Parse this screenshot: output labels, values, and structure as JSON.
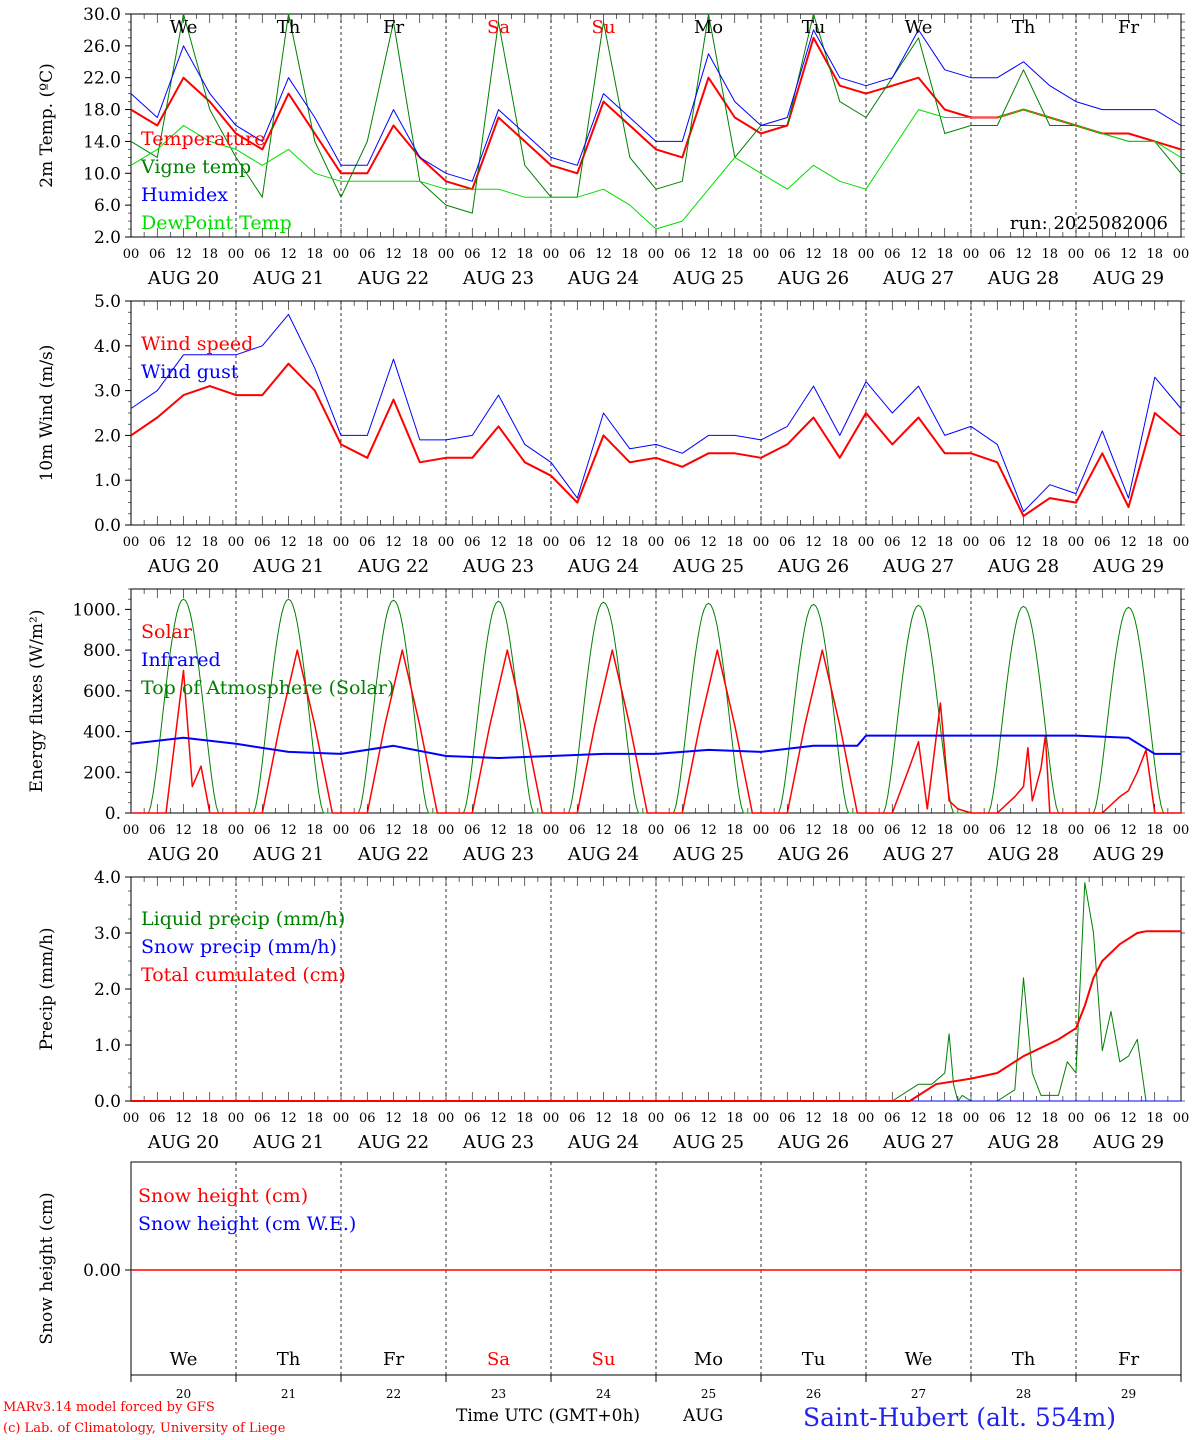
{
  "colors": {
    "red": "#ff0000",
    "green": "#008000",
    "blue": "#0000ff",
    "lightgreen": "#00dd00",
    "weekend": "#ff0000",
    "weekday": "#000000",
    "station": "#2222ee"
  },
  "day_names": [
    "We",
    "Th",
    "Fr",
    "Sa",
    "Su",
    "Mo",
    "Tu",
    "We",
    "Th",
    "Fr"
  ],
  "day_weekend": [
    false,
    false,
    false,
    true,
    true,
    false,
    false,
    false,
    false,
    false
  ],
  "date_labels": [
    "AUG 20",
    "AUG 21",
    "AUG 22",
    "AUG 23",
    "AUG 24",
    "AUG 25",
    "AUG 26",
    "AUG 27",
    "AUG 28",
    "AUG 29"
  ],
  "bottom_day_numbers": [
    "20",
    "21",
    "22",
    "23",
    "24",
    "25",
    "26",
    "27",
    "28",
    "29"
  ],
  "hour_ticks": [
    "00",
    "06",
    "12",
    "18"
  ],
  "footer": {
    "credit_line1": "MARv3.14 model forced by GFS",
    "credit_line2": "(c) Lab. of Climatology, University of Liege",
    "x_axis_label": "Time UTC (GMT+0h)",
    "month": "AUG",
    "station": "Saint-Hubert (alt. 554m)"
  },
  "chart_data": [
    {
      "type": "line",
      "ylabel": "2m Temp. (ºC)",
      "ylim": [
        2,
        30
      ],
      "yticks": [
        2,
        6,
        10,
        14,
        18,
        22,
        26,
        30
      ],
      "ytick_labels": [
        "2.0",
        "6.0",
        "10.0",
        "14.0",
        "18.0",
        "22.0",
        "26.0",
        "30.0"
      ],
      "annotation": "run: 2025082006",
      "x_hours": [
        0,
        6,
        12,
        18,
        24,
        30,
        36,
        42,
        48,
        54,
        60,
        66,
        72,
        78,
        84,
        90,
        96,
        102,
        108,
        114,
        120,
        126,
        132,
        138,
        144,
        150,
        156,
        162,
        168,
        174,
        180,
        186,
        192,
        198,
        204,
        210,
        216,
        222,
        228,
        234,
        240
      ],
      "series": [
        {
          "name": "Temperature",
          "color": "red",
          "width": 2,
          "values": [
            18,
            16,
            22,
            19,
            15,
            13,
            20,
            15,
            10,
            10,
            16,
            12,
            9,
            8,
            17,
            14,
            11,
            10,
            19,
            16,
            13,
            12,
            22,
            17,
            15,
            16,
            27,
            21,
            20,
            21,
            22,
            18,
            17,
            17,
            18,
            17,
            16,
            15,
            15,
            14,
            13
          ]
        },
        {
          "name": "Vigne temp",
          "color": "green",
          "width": 1,
          "values": [
            14,
            12,
            30,
            18,
            12,
            7,
            30,
            14,
            7,
            14,
            29,
            9,
            6,
            5,
            29,
            11,
            7,
            7,
            29,
            12,
            8,
            9,
            30,
            12,
            16,
            16,
            30,
            19,
            17,
            22,
            27,
            15,
            16,
            16,
            23,
            16,
            16,
            15,
            14,
            14,
            10
          ]
        },
        {
          "name": "Humidex",
          "color": "blue",
          "width": 1,
          "values": [
            20,
            17,
            26,
            20,
            16,
            14,
            22,
            17,
            11,
            11,
            18,
            12,
            10,
            9,
            18,
            15,
            12,
            11,
            20,
            17,
            14,
            14,
            25,
            19,
            16,
            17,
            28,
            22,
            21,
            22,
            28,
            23,
            22,
            22,
            24,
            21,
            19,
            18,
            18,
            18,
            16
          ]
        },
        {
          "name": "DewPoint Temp",
          "color": "lightgreen",
          "width": 1,
          "values": [
            11,
            13,
            16,
            14,
            13,
            11,
            13,
            10,
            9,
            9,
            9,
            9,
            8,
            8,
            8,
            7,
            7,
            7,
            8,
            6,
            3,
            4,
            8,
            12,
            10,
            8,
            11,
            9,
            8,
            13,
            18,
            17,
            17,
            17,
            18,
            17,
            16,
            15,
            14,
            14,
            12
          ]
        }
      ]
    },
    {
      "type": "line",
      "ylabel": "10m Wind (m/s)",
      "ylim": [
        0,
        5
      ],
      "yticks": [
        0,
        1,
        2,
        3,
        4,
        5
      ],
      "ytick_labels": [
        "0.0",
        "1.0",
        "2.0",
        "3.0",
        "4.0",
        "5.0"
      ],
      "x_hours": [
        0,
        6,
        12,
        18,
        24,
        30,
        36,
        42,
        48,
        54,
        60,
        66,
        72,
        78,
        84,
        90,
        96,
        102,
        108,
        114,
        120,
        126,
        132,
        138,
        144,
        150,
        156,
        162,
        168,
        174,
        180,
        186,
        192,
        198,
        204,
        210,
        216,
        222,
        228,
        234,
        240
      ],
      "series": [
        {
          "name": "Wind speed",
          "color": "red",
          "width": 2,
          "values": [
            2.0,
            2.4,
            2.9,
            3.1,
            2.9,
            2.9,
            3.6,
            3.0,
            1.8,
            1.5,
            2.8,
            1.4,
            1.5,
            1.5,
            2.2,
            1.4,
            1.1,
            0.5,
            2.0,
            1.4,
            1.5,
            1.3,
            1.6,
            1.6,
            1.5,
            1.8,
            2.4,
            1.5,
            2.5,
            1.8,
            2.4,
            1.6,
            1.6,
            1.4,
            0.2,
            0.6,
            0.5,
            1.6,
            0.4,
            2.5,
            2.0
          ]
        },
        {
          "name": "Wind gust",
          "color": "blue",
          "width": 1,
          "values": [
            2.6,
            3.0,
            3.8,
            3.8,
            3.8,
            4.0,
            4.7,
            3.5,
            2.0,
            2.0,
            3.7,
            1.9,
            1.9,
            2.0,
            2.9,
            1.8,
            1.4,
            0.6,
            2.5,
            1.7,
            1.8,
            1.6,
            2.0,
            2.0,
            1.9,
            2.2,
            3.1,
            2.0,
            3.2,
            2.5,
            3.1,
            2.0,
            2.2,
            1.8,
            0.3,
            0.9,
            0.7,
            2.1,
            0.6,
            3.3,
            2.6
          ]
        }
      ]
    },
    {
      "type": "line",
      "ylabel": "Energy fluxes (W/m²)",
      "ylim": [
        0,
        1100
      ],
      "yticks": [
        0,
        200,
        400,
        600,
        800,
        1000
      ],
      "ytick_labels": [
        "0.",
        "200.",
        "400.",
        "600.",
        "800.",
        "1000."
      ],
      "series": [
        {
          "name": "Solar",
          "color": "red",
          "width": 1.5,
          "day_peaks": [
            700,
            800,
            800,
            800,
            790,
            770,
            770,
            540,
            380,
            310
          ],
          "x_hours": [
            0,
            8,
            12,
            14,
            16,
            18,
            21,
            24,
            30,
            34,
            38,
            42,
            46,
            54,
            58,
            62,
            66,
            70,
            78,
            82,
            86,
            90,
            94,
            102,
            106,
            110,
            114,
            118,
            126,
            130,
            134,
            138,
            142,
            150,
            154,
            158,
            162,
            166,
            174,
            178,
            180,
            182,
            185,
            187,
            189,
            192,
            198,
            202,
            204,
            205,
            206,
            208,
            209,
            210,
            212,
            214,
            216,
            222,
            226,
            228,
            230,
            232,
            234,
            240
          ],
          "values": [
            0,
            0,
            700,
            130,
            230,
            0,
            0,
            0,
            0,
            430,
            800,
            430,
            0,
            0,
            430,
            800,
            430,
            0,
            0,
            430,
            800,
            430,
            0,
            0,
            430,
            800,
            430,
            0,
            0,
            430,
            800,
            430,
            0,
            0,
            430,
            800,
            430,
            0,
            0,
            230,
            350,
            20,
            540,
            60,
            20,
            0,
            0,
            80,
            130,
            320,
            60,
            220,
            380,
            0,
            0,
            0,
            0,
            0,
            80,
            110,
            200,
            310,
            0,
            0
          ]
        },
        {
          "name": "Infrared",
          "color": "blue",
          "width": 2,
          "x_hours": [
            0,
            12,
            24,
            36,
            48,
            60,
            72,
            84,
            96,
            108,
            120,
            132,
            144,
            156,
            166,
            168,
            180,
            192,
            204,
            216,
            228,
            234,
            240
          ],
          "values": [
            340,
            370,
            340,
            300,
            290,
            330,
            280,
            270,
            280,
            290,
            290,
            310,
            300,
            330,
            330,
            380,
            380,
            380,
            380,
            380,
            370,
            290,
            290
          ]
        },
        {
          "name": "Top of Atmosphere (Solar)",
          "color": "green",
          "width": 1,
          "day_peaks": [
            1050,
            1050,
            1045,
            1040,
            1035,
            1030,
            1025,
            1020,
            1015,
            1010
          ]
        }
      ]
    },
    {
      "type": "line",
      "ylabel": "Precip (mm/h)",
      "ylim": [
        0,
        4
      ],
      "yticks": [
        0,
        1,
        2,
        3,
        4
      ],
      "ytick_labels": [
        "0.0",
        "1.0",
        "2.0",
        "3.0",
        "4.0"
      ],
      "series": [
        {
          "name": "Liquid precip (mm/h)",
          "color": "green",
          "width": 1,
          "x_hours": [
            0,
            174,
            180,
            183,
            186,
            187,
            188,
            189,
            190,
            192,
            198,
            202,
            204,
            206,
            208,
            212,
            214,
            216,
            218,
            220,
            222,
            224,
            226,
            228,
            230,
            232,
            236,
            240
          ],
          "values": [
            0,
            0,
            0.3,
            0.3,
            0.5,
            1.2,
            0.3,
            0,
            0.1,
            0,
            0,
            0.2,
            2.2,
            0.5,
            0.1,
            0.1,
            0.7,
            0.5,
            3.9,
            3.0,
            0.9,
            1.6,
            0.7,
            0.8,
            1.1,
            0,
            0,
            0
          ]
        },
        {
          "name": "Snow precip (mm/h)",
          "color": "blue",
          "width": 1,
          "x_hours": [
            0,
            240
          ],
          "values": [
            0,
            0
          ]
        },
        {
          "name": "Total cumulated (cm)",
          "color": "red",
          "width": 2,
          "x_hours": [
            0,
            178,
            184,
            192,
            198,
            204,
            212,
            216,
            218,
            220,
            222,
            226,
            230,
            232,
            240
          ],
          "values": [
            0,
            0,
            0.3,
            0.4,
            0.5,
            0.8,
            1.1,
            1.3,
            1.7,
            2.2,
            2.5,
            2.8,
            3.0,
            3.03,
            3.03
          ]
        }
      ]
    },
    {
      "type": "line",
      "ylabel": "Snow height (cm)",
      "ytick_labels": [
        "0.00"
      ],
      "series": [
        {
          "name": "Snow height (cm)",
          "color": "red",
          "width": 1.5,
          "x_hours": [
            0,
            240
          ],
          "values": [
            0,
            0
          ]
        },
        {
          "name": "Snow height (cm W.E.)",
          "color": "blue",
          "width": 1.5,
          "x_hours": [
            0,
            240
          ],
          "values": [
            0,
            0
          ]
        }
      ]
    }
  ]
}
